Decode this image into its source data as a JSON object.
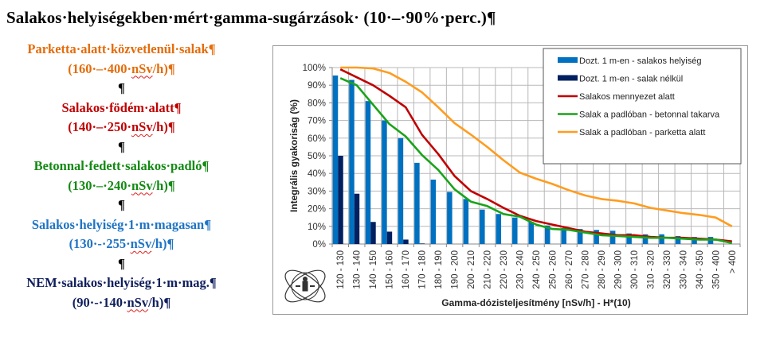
{
  "document": {
    "title": "Salakos·helyiségekben·mért·gamma-sugárzások· (10·–·90%·perc.)¶",
    "legend_blocks": [
      {
        "label": "Parketta·alatt·közvetlenül·salak¶",
        "range_prefix": "(160·–·400·",
        "unit": "nSv",
        "range_suffix": "/h)¶",
        "color": "#e46c0a"
      },
      {
        "label": "Salakos·födém·alatt¶",
        "range_prefix": "(140·–·250·",
        "unit": "nSv",
        "range_suffix": "/h)¶",
        "color": "#c00000"
      },
      {
        "label": "Betonnal·fedett·salakos·padló¶",
        "range_prefix": "(130·–·240·",
        "unit": "nSv",
        "range_suffix": "/h)¶",
        "color": "#138a13"
      },
      {
        "label": "Salakos·helyiség·1·m·magasan¶",
        "range_prefix": "(130·-·255·",
        "unit": "nSv",
        "range_suffix": "/h)¶",
        "color": "#1f74c4"
      },
      {
        "label": "NEM·salakos·helyiség·1·m·mag.¶",
        "range_prefix": "(90·-·140·",
        "unit": "nSv",
        "range_suffix": "/h)¶",
        "color": "#0f1f5c"
      }
    ],
    "pilcrow": "¶"
  },
  "chart_data": {
    "type": "bar",
    "title": "",
    "xlabel": "Gamma-dózisteljesítmény [nSv/h] - H*(10)",
    "ylabel": "Integrális gyakoriság (%)",
    "ylim": [
      0,
      100
    ],
    "yticks": [
      "0%",
      "10%",
      "20%",
      "30%",
      "40%",
      "50%",
      "60%",
      "70%",
      "80%",
      "90%",
      "100%"
    ],
    "grid": true,
    "legend_position": "upper right (inside)",
    "categories": [
      "120 - 130",
      "130 - 140",
      "140 - 150",
      "150 - 160",
      "160 - 170",
      "170 - 180",
      "180 - 190",
      "190 - 200",
      "200 - 210",
      "210 - 220",
      "220 - 230",
      "230 - 240",
      "240 - 250",
      "250 - 260",
      "260 - 270",
      "270 - 280",
      "280 - 290",
      "290 - 300",
      "300 - 310",
      "310 - 320",
      "320 - 330",
      "330 - 340",
      "340 - 350",
      "350 - 400",
      "> 400"
    ],
    "series": [
      {
        "name": "Dozt. 1 m-en - salakos helyiség",
        "kind": "bar",
        "color": "#0070c0",
        "values": [
          95.5,
          93,
          81,
          70,
          60,
          46,
          36.5,
          29.5,
          25.5,
          19.5,
          17,
          15,
          12.5,
          10.5,
          9,
          8.5,
          8,
          7.5,
          6,
          5.5,
          5.5,
          4.5,
          4,
          4,
          0
        ]
      },
      {
        "name": "Dozt. 1 m-en - salak nélkül",
        "kind": "bar",
        "color": "#002060",
        "values": [
          50,
          28.5,
          12.5,
          7,
          2.5,
          0.3,
          0,
          0,
          0,
          0,
          0,
          0,
          0,
          0,
          0,
          0,
          0,
          0,
          0,
          0,
          0,
          0,
          0,
          0,
          0
        ]
      },
      {
        "name": "Salakos mennyezet alatt",
        "kind": "line",
        "color": "#c00000",
        "values": [
          99,
          94.5,
          90,
          84,
          77.5,
          62,
          51,
          38.5,
          30,
          25.5,
          20.5,
          16,
          13,
          11,
          9,
          7,
          6,
          5,
          5,
          4,
          3.5,
          3.5,
          3,
          2.5,
          1.5
        ]
      },
      {
        "name": "Salak a padlóban - betonnal takarva",
        "kind": "line",
        "color": "#1aa31a",
        "values": [
          94,
          90,
          79,
          68,
          61,
          50.5,
          42,
          31,
          24,
          21.5,
          17,
          15.5,
          11,
          8.5,
          8,
          6.5,
          5,
          4.5,
          4,
          3.5,
          3.5,
          3,
          2.5,
          2.5,
          0.5
        ]
      },
      {
        "name": "Salak a padlóban - parketta alatt",
        "kind": "line",
        "color": "#ff9c1f",
        "values": [
          100,
          100,
          99.5,
          97,
          92,
          86,
          77.5,
          68.5,
          62,
          55,
          47.5,
          40.5,
          37,
          34,
          30.5,
          27.5,
          25.5,
          24.5,
          23,
          20.5,
          19,
          17.5,
          16.5,
          15,
          10
        ]
      }
    ]
  },
  "chart_ui": {
    "legend": [
      {
        "label": "Dozt. 1 m-en - salakos helyiség",
        "swatch": "bar",
        "color": "#0070c0"
      },
      {
        "label": "Dozt. 1 m-en - salak nélkül",
        "swatch": "bar",
        "color": "#002060"
      },
      {
        "label": "Salakos mennyezet alatt",
        "swatch": "line",
        "color": "#c00000"
      },
      {
        "label": "Salak a padlóban - betonnal takarva",
        "swatch": "line",
        "color": "#1aa31a"
      },
      {
        "label": "Salak a padlóban - parketta alatt",
        "swatch": "line",
        "color": "#ff9c1f"
      }
    ],
    "logo": "ESSKI logo"
  }
}
